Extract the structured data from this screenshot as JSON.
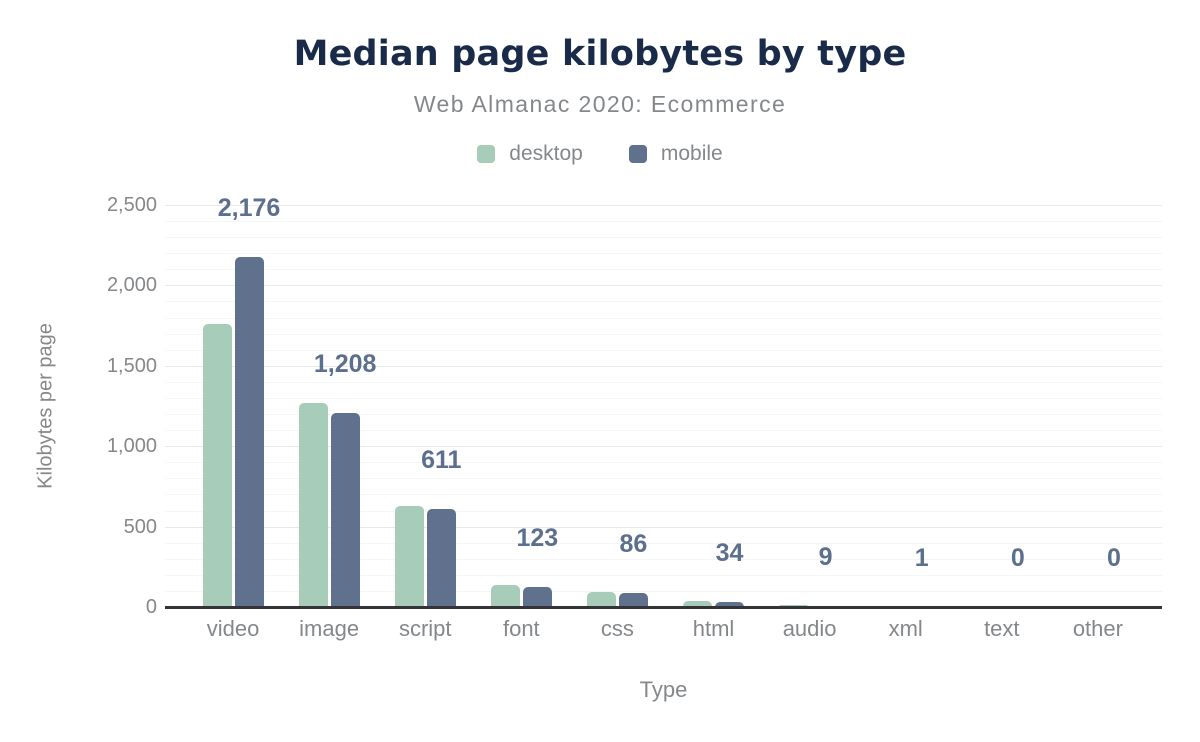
{
  "page": {
    "background": "#ffffff"
  },
  "header": {
    "title": "Median page kilobytes by type",
    "subtitle": "Web Almanac 2020: Ecommerce"
  },
  "colors": {
    "title_text": "#1a2b4a",
    "muted_text": "#85888b",
    "data_label_text": "#5c6f8d",
    "desktop_bar": "#a8ccba",
    "mobile_bar": "#5f718d",
    "axis_line": "#323437",
    "gridline_major": "#e8e9eb",
    "gridline_minor": "#f4f5f6"
  },
  "chart_data": {
    "type": "bar",
    "title": "Median page kilobytes by type",
    "subtitle": "Web Almanac 2020: Ecommerce",
    "xlabel": "Type",
    "ylabel": "Kilobytes per page",
    "ylim": [
      0,
      2500
    ],
    "yticks": [
      0,
      500,
      1000,
      1500,
      2000,
      2500
    ],
    "ytick_labels": [
      "0",
      "500",
      "1,000",
      "1,500",
      "2,000",
      "2,500"
    ],
    "grid": "horizontal; major every 500, faint minor every 100",
    "legend_position": "top-center",
    "categories": [
      "video",
      "image",
      "script",
      "font",
      "css",
      "html",
      "audio",
      "xml",
      "text",
      "other"
    ],
    "series": [
      {
        "name": "desktop",
        "color": "#a8ccba",
        "values": [
          1760,
          1270,
          630,
          140,
          95,
          36,
          13,
          1,
          0,
          0
        ]
      },
      {
        "name": "mobile",
        "color": "#5f718d",
        "values": [
          2176,
          1208,
          611,
          123,
          86,
          34,
          9,
          1,
          0,
          0
        ]
      }
    ],
    "data_labels": {
      "series": "mobile",
      "values": [
        "2,176",
        "1,208",
        "611",
        "123",
        "86",
        "34",
        "9",
        "1",
        "0",
        "0"
      ]
    }
  }
}
